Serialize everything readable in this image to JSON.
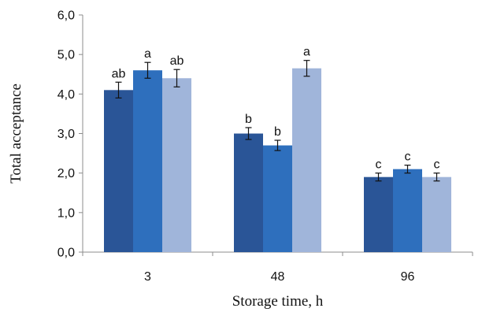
{
  "chart_data": {
    "type": "bar",
    "title": "",
    "xlabel": "Storage time, h",
    "ylabel": "Total acceptance",
    "categories": [
      "3",
      "48",
      "96"
    ],
    "ylim": [
      0,
      6
    ],
    "yticks": [
      "0,0",
      "1,0",
      "2,0",
      "3,0",
      "4,0",
      "5,0",
      "6,0"
    ],
    "grid": false,
    "legend": "none",
    "series": [
      {
        "color": "#2a5597",
        "values": [
          4.1,
          3.0,
          1.9
        ],
        "errors": [
          0.2,
          0.15,
          0.1
        ],
        "labels": [
          "ab",
          "b",
          "c"
        ]
      },
      {
        "color": "#2e6fbd",
        "values": [
          4.6,
          2.7,
          2.1
        ],
        "errors": [
          0.2,
          0.13,
          0.1
        ],
        "labels": [
          "a",
          "b",
          "c"
        ]
      },
      {
        "color": "#a0b5da",
        "values": [
          4.4,
          4.65,
          1.9
        ],
        "errors": [
          0.22,
          0.2,
          0.1
        ],
        "labels": [
          "ab",
          "a",
          "c"
        ]
      }
    ]
  }
}
